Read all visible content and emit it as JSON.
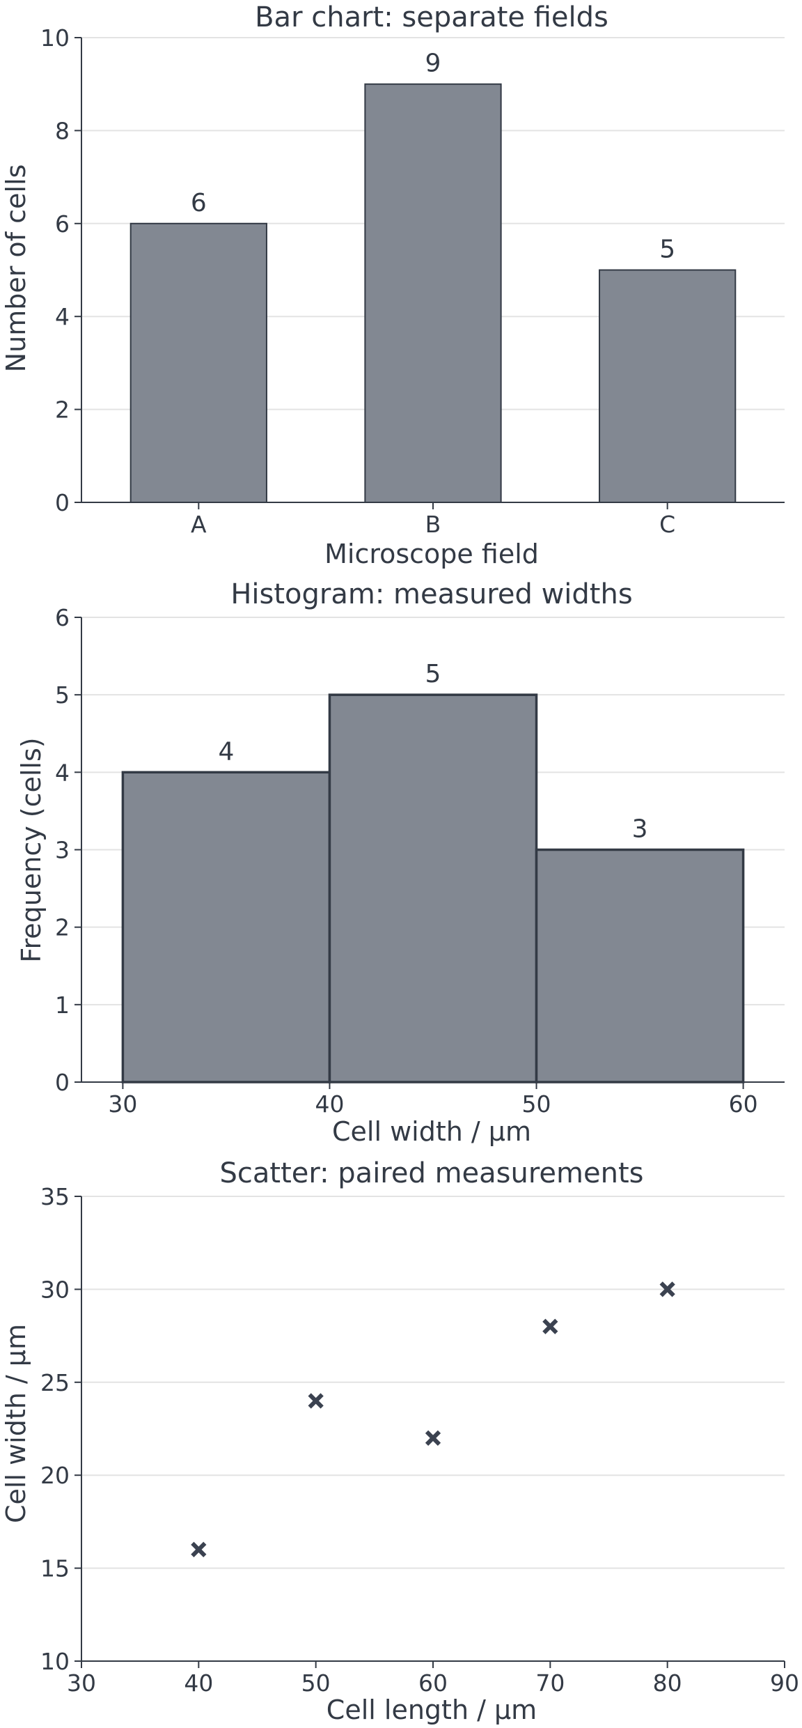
{
  "chart_data": [
    {
      "type": "bar",
      "title": "Bar chart: separate fields",
      "xlabel": "Microscope field",
      "ylabel": "Number of cells",
      "categories": [
        "A",
        "B",
        "C"
      ],
      "values": [
        6,
        9,
        5
      ],
      "data_labels": [
        "6",
        "9",
        "5"
      ],
      "ylim": [
        0,
        10
      ],
      "yticks": [
        0,
        2,
        4,
        6,
        8,
        10
      ],
      "grid": "horizontal",
      "colors": {
        "bar": "#828892",
        "edge": "#333a45"
      }
    },
    {
      "type": "bar",
      "subtype": "histogram",
      "title": "Histogram: measured widths",
      "xlabel": "Cell width / µm",
      "ylabel": "Frequency (cells)",
      "bins": [
        [
          30,
          40
        ],
        [
          40,
          50
        ],
        [
          50,
          60
        ]
      ],
      "values": [
        4,
        5,
        3
      ],
      "data_labels": [
        "4",
        "5",
        "3"
      ],
      "xlim": [
        28,
        62
      ],
      "xticks": [
        30,
        40,
        50,
        60
      ],
      "ylim": [
        0,
        6
      ],
      "yticks": [
        0,
        1,
        2,
        3,
        4,
        5,
        6
      ],
      "grid": "horizontal",
      "colors": {
        "bar": "#828892",
        "edge": "#333a45"
      }
    },
    {
      "type": "scatter",
      "title": "Scatter: paired measurements",
      "xlabel": "Cell length / µm",
      "ylabel": "Cell width / µm",
      "x": [
        40,
        50,
        60,
        70,
        80
      ],
      "y": [
        16,
        24,
        22,
        28,
        30
      ],
      "marker": "x",
      "xlim": [
        30,
        90
      ],
      "xticks": [
        30,
        40,
        50,
        60,
        70,
        80,
        90
      ],
      "ylim": [
        10,
        35
      ],
      "yticks": [
        10,
        15,
        20,
        25,
        30,
        35
      ],
      "grid": "horizontal",
      "colors": {
        "marker": "#3b4250"
      }
    }
  ]
}
